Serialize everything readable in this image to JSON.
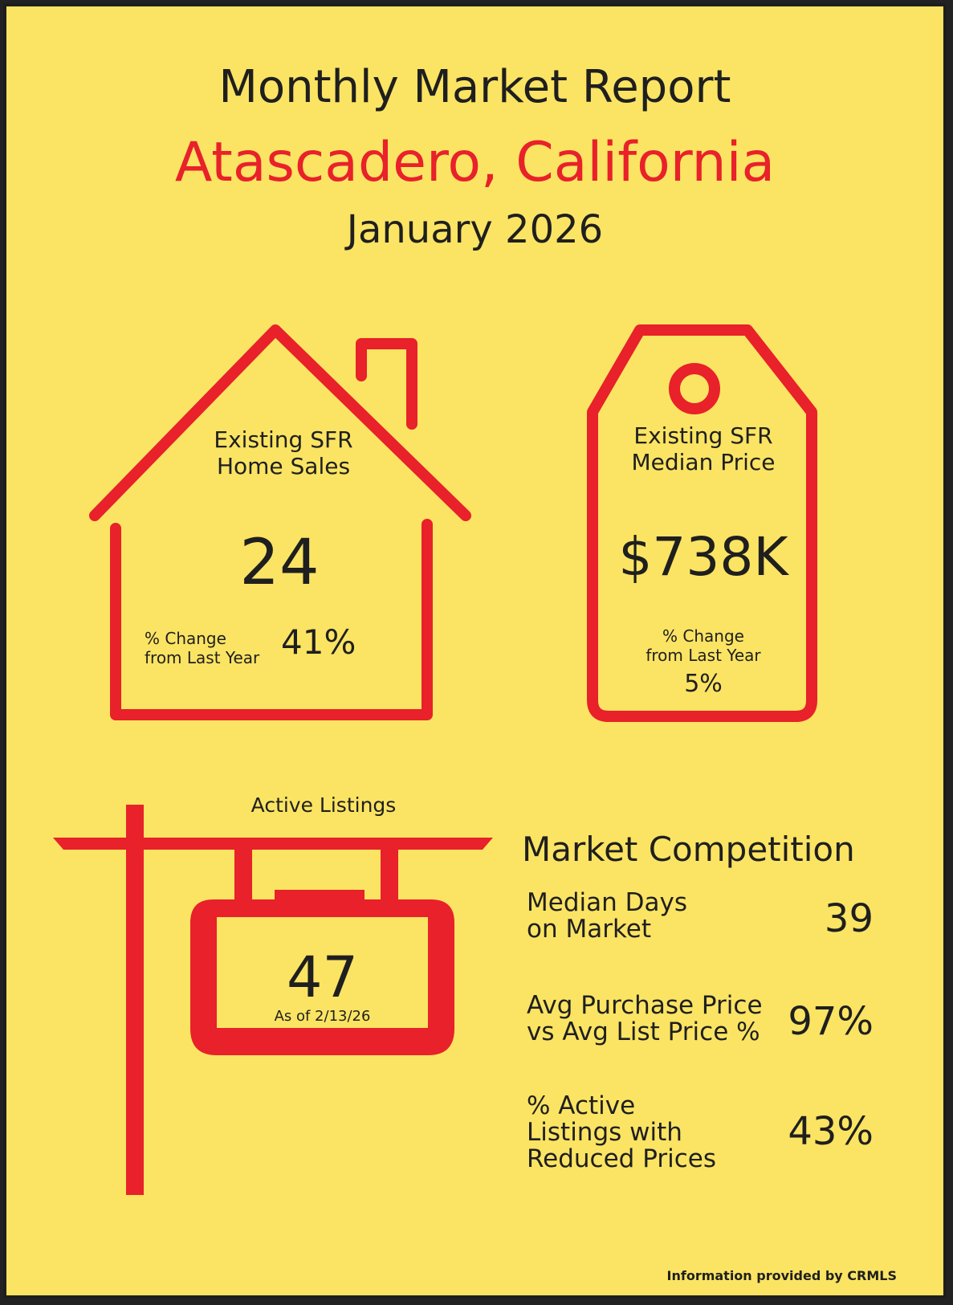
{
  "header": {
    "title": "Monthly Market Report",
    "location": "Atascadero, California",
    "period": "January 2026"
  },
  "colors": {
    "background": "#fbe463",
    "accent": "#e8212a",
    "text": "#1f1f1f"
  },
  "home_sales": {
    "icon": "house-icon",
    "label_line1": "Existing SFR",
    "label_line2": "Home Sales",
    "value": "24",
    "change_label_line1": "% Change",
    "change_label_line2": "from Last Year",
    "change_value": "41%"
  },
  "median_price": {
    "icon": "price-tag-icon",
    "label_line1": "Existing SFR",
    "label_line2": "Median Price",
    "value": "$738K",
    "change_label_line1": "% Change",
    "change_label_line2": "from Last Year",
    "change_value": "5%"
  },
  "active_listings": {
    "icon": "for-sale-sign-icon",
    "label": "Active Listings",
    "value": "47",
    "as_of": "As of 2/13/26"
  },
  "market_competition": {
    "title": "Market Competition",
    "rows": [
      {
        "label_line1": "Median Days",
        "label_line2": "on Market",
        "label_line3": "",
        "value": "39"
      },
      {
        "label_line1": "Avg Purchase Price",
        "label_line2": "vs Avg List Price %",
        "label_line3": "",
        "value": "97%"
      },
      {
        "label_line1": "% Active",
        "label_line2": "Listings with",
        "label_line3": "Reduced Prices",
        "value": "43%"
      }
    ]
  },
  "footer": {
    "source": "Information provided by CRMLS"
  }
}
